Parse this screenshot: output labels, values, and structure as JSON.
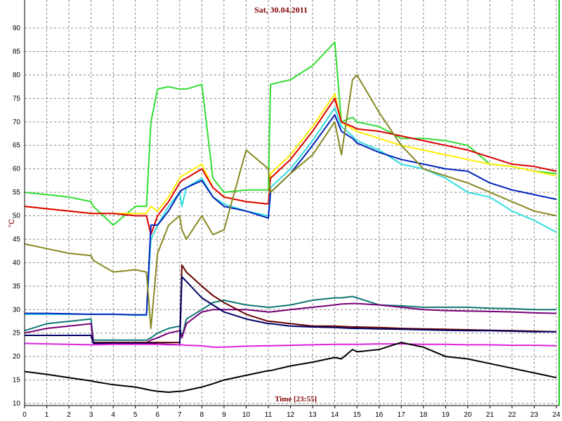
{
  "chart_data": {
    "type": "line",
    "title": "Sat, 30.04.2011",
    "x_label": "Time [23:55]",
    "y_label": "°C",
    "x": [
      0,
      1,
      2,
      3,
      3.1,
      4,
      5,
      5.5,
      5.7,
      6,
      6.5,
      7,
      7.1,
      7.3,
      8,
      8.5,
      9,
      10,
      11,
      11.1,
      12,
      13,
      14,
      14.3,
      14.8,
      15,
      16,
      17,
      18,
      19,
      20,
      21,
      22,
      23,
      24
    ],
    "xlim": [
      0,
      24
    ],
    "xticks": [
      0,
      1,
      2,
      3,
      4,
      5,
      6,
      7,
      8,
      9,
      10,
      11,
      12,
      13,
      14,
      15,
      16,
      17,
      18,
      19,
      20,
      21,
      22,
      23,
      24
    ],
    "ylim": [
      10,
      90
    ],
    "yticks": [
      10,
      15,
      20,
      25,
      30,
      35,
      40,
      45,
      50,
      55,
      60,
      65,
      70,
      75,
      80,
      85,
      90
    ],
    "grid": true,
    "series": [
      {
        "color": "#33dd33",
        "values": [
          55,
          54.5,
          54,
          53,
          52,
          48,
          52,
          52,
          70,
          77,
          77.5,
          77,
          77,
          77,
          78,
          58,
          55,
          55.5,
          55.5,
          78,
          79,
          82,
          87,
          70,
          71,
          70,
          69,
          66.5,
          66.5,
          66,
          65,
          61,
          60.5,
          59.5,
          59
        ]
      },
      {
        "color": "#ffee00",
        "values": [
          52,
          51.5,
          51,
          50.5,
          50.5,
          50.5,
          50.5,
          50.5,
          52,
          51,
          54,
          58,
          58.5,
          59,
          61,
          56,
          54,
          53,
          52.5,
          59,
          63,
          69,
          76,
          70,
          68.5,
          68,
          66.5,
          65,
          64,
          63,
          62,
          61,
          60.5,
          59.5,
          58.5
        ]
      },
      {
        "color": "#dd0000",
        "values": [
          52,
          51.5,
          51,
          50.5,
          50.5,
          50.5,
          50,
          50,
          46,
          50,
          53,
          57,
          57.5,
          58,
          60,
          56,
          54,
          53,
          52.5,
          58,
          62,
          68,
          75,
          70,
          69,
          68.5,
          68,
          67,
          66,
          65,
          64,
          62.5,
          61,
          60.5,
          59.5
        ]
      },
      {
        "color": "#33dddd",
        "values": [
          29,
          29,
          29,
          29,
          29,
          29,
          28.8,
          28.8,
          45,
          48,
          52,
          55,
          52,
          56,
          58,
          54,
          52.5,
          51,
          50,
          56,
          60,
          66,
          73,
          69,
          67,
          66,
          64,
          61,
          60,
          58,
          55,
          54,
          51,
          49,
          46.5
        ]
      },
      {
        "color": "#0022bb",
        "values": [
          29.2,
          29.2,
          29.1,
          29,
          29,
          29,
          28.9,
          28.9,
          48,
          48,
          51,
          55,
          55.5,
          56,
          57.5,
          54,
          52,
          51,
          49.5,
          55,
          59,
          65,
          71.5,
          68,
          66.5,
          65.5,
          63.5,
          62,
          61,
          60,
          59.5,
          57,
          55.5,
          54.5,
          53.5
        ]
      },
      {
        "color": "#888822",
        "values": [
          44,
          43,
          42,
          41.5,
          40.5,
          38,
          38.5,
          38,
          26,
          42,
          48,
          50,
          47,
          45,
          50,
          46,
          47,
          64,
          60,
          55,
          59,
          63,
          70,
          63,
          79,
          80,
          72,
          65,
          60,
          58.5,
          57,
          55,
          53,
          51,
          50
        ]
      },
      {
        "color": "#117777",
        "values": [
          25.5,
          27,
          27.5,
          28,
          23.5,
          23.5,
          23.5,
          23.5,
          24,
          25,
          26,
          26.5,
          24,
          28,
          30,
          31.5,
          32,
          31,
          30.5,
          30.5,
          31,
          32,
          32.5,
          32.5,
          32.8,
          32.5,
          31,
          30.8,
          30.5,
          30.5,
          30.5,
          30.3,
          30.2,
          30,
          30
        ]
      },
      {
        "color": "#770077",
        "values": [
          25,
          26,
          26.5,
          27,
          23,
          23,
          23,
          23,
          23.5,
          24,
          25,
          25.5,
          24,
          27,
          29.5,
          30,
          30,
          30,
          29.5,
          29.5,
          30,
          30.5,
          31,
          31.2,
          31.3,
          31.3,
          31,
          30.5,
          30,
          29.8,
          29.7,
          29.6,
          29.5,
          29.3,
          29.2
        ]
      },
      {
        "color": "#660000",
        "values": [
          24.5,
          24.5,
          24.5,
          24.5,
          23,
          23,
          23,
          23,
          23,
          23,
          23,
          23,
          39.5,
          38,
          35,
          33,
          31.5,
          29,
          27.5,
          27.5,
          27,
          26.5,
          26.5,
          26.4,
          26.3,
          26.3,
          26.2,
          26,
          25.9,
          25.8,
          25.7,
          25.6,
          25.5,
          25.4,
          25.3
        ]
      },
      {
        "color": "#000066",
        "values": [
          24.5,
          24.5,
          24.5,
          24.5,
          22.8,
          22.8,
          22.8,
          22.8,
          22.8,
          22.7,
          22.6,
          22.5,
          37,
          36,
          32.5,
          31,
          29.5,
          28,
          27,
          27,
          26.5,
          26.3,
          26.2,
          26.1,
          26,
          26,
          25.9,
          25.8,
          25.7,
          25.6,
          25.5,
          25.5,
          25.4,
          25.3,
          25.3
        ]
      },
      {
        "color": "#dd22dd",
        "values": [
          22.8,
          22.7,
          22.6,
          22.5,
          22.5,
          22.6,
          22.6,
          22.6,
          22.6,
          22.6,
          22.5,
          22.5,
          22.5,
          22.4,
          22.3,
          22,
          22,
          22.2,
          22.3,
          22.3,
          22.4,
          22.5,
          22.6,
          22.6,
          22.6,
          22.6,
          22.7,
          22.7,
          22.6,
          22.6,
          22.5,
          22.5,
          22.4,
          22.4,
          22.3
        ]
      },
      {
        "color": "#000000",
        "values": [
          16.8,
          16.2,
          15.5,
          14.8,
          14.7,
          14,
          13.5,
          13,
          12.8,
          12.6,
          12.4,
          12.6,
          12.6,
          12.8,
          13.5,
          14.2,
          15,
          16,
          17,
          17,
          18,
          18.8,
          19.8,
          19.5,
          21.5,
          21,
          21.5,
          23,
          22,
          20,
          19.5,
          18.5,
          17.5,
          16.5,
          15.5
        ]
      }
    ]
  }
}
